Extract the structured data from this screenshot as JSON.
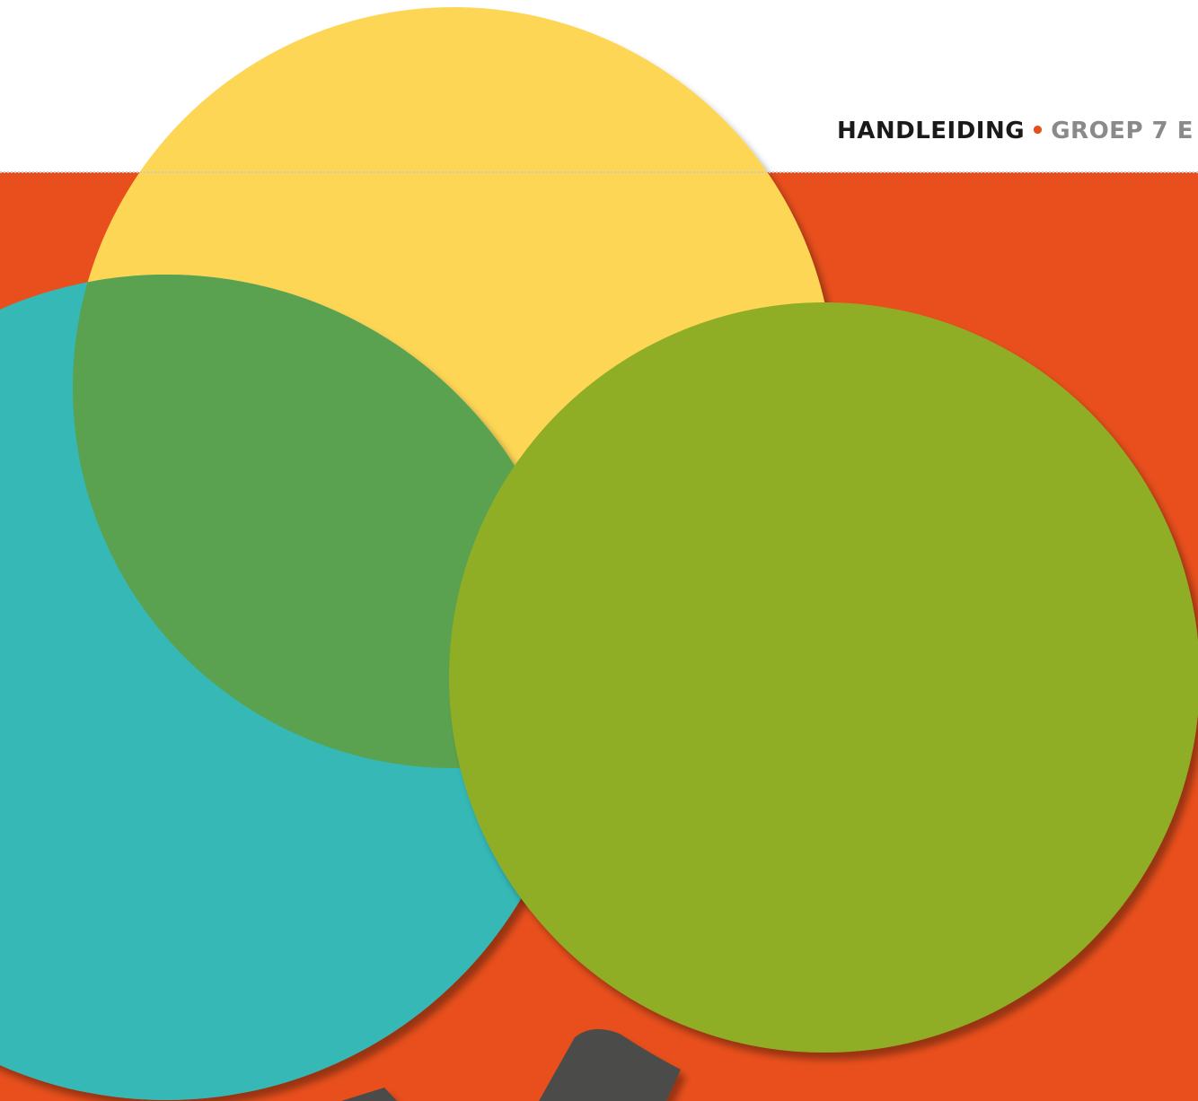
{
  "header": {
    "title": "HANDLEIDING",
    "separator": "•",
    "subtitle": "GROEP 7 E"
  },
  "colors": {
    "background_orange": "#e84f1c",
    "circle_yellow": "#fed657",
    "circle_teal": "#35b8b6",
    "overlap_green": "#5aa250",
    "circle_lime": "#8fae28",
    "shape_dark": "#4c4c4a",
    "dotted_rule": "#c9c9c9"
  }
}
